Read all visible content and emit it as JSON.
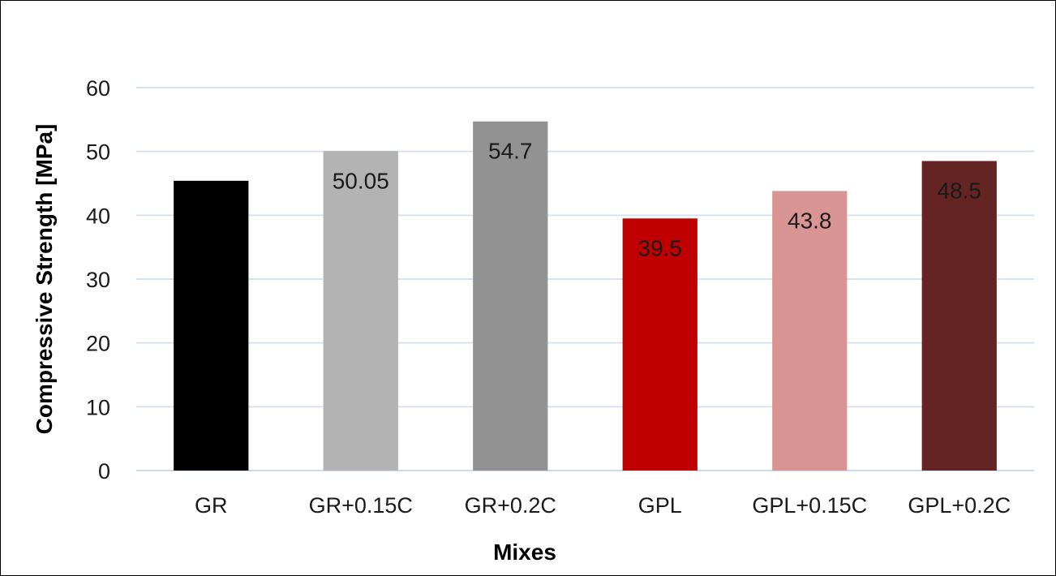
{
  "chart_data": {
    "type": "bar",
    "title": "",
    "xlabel": "Mixes",
    "ylabel": "Compressive Strength [MPa]",
    "ylim": [
      0,
      60
    ],
    "yticks": [
      0,
      10,
      20,
      30,
      40,
      50,
      60
    ],
    "grid": true,
    "legend": "none",
    "categories": [
      "GR",
      "GR+0.15C",
      "GR+0.2C",
      "GPL",
      "GPL+0.15C",
      "GPL+0.2C"
    ],
    "values": [
      45.4,
      50.05,
      54.7,
      39.5,
      43.8,
      48.5
    ],
    "data_labels": [
      "",
      "50.05",
      "54.7",
      "39.5",
      "43.8",
      "48.5"
    ],
    "colors": [
      "#000000",
      "#b3b3b3",
      "#929292",
      "#c00000",
      "#d99594",
      "#632423"
    ],
    "gridline_color": "#d6e3f0",
    "axis_line_color": "#c9daea"
  }
}
